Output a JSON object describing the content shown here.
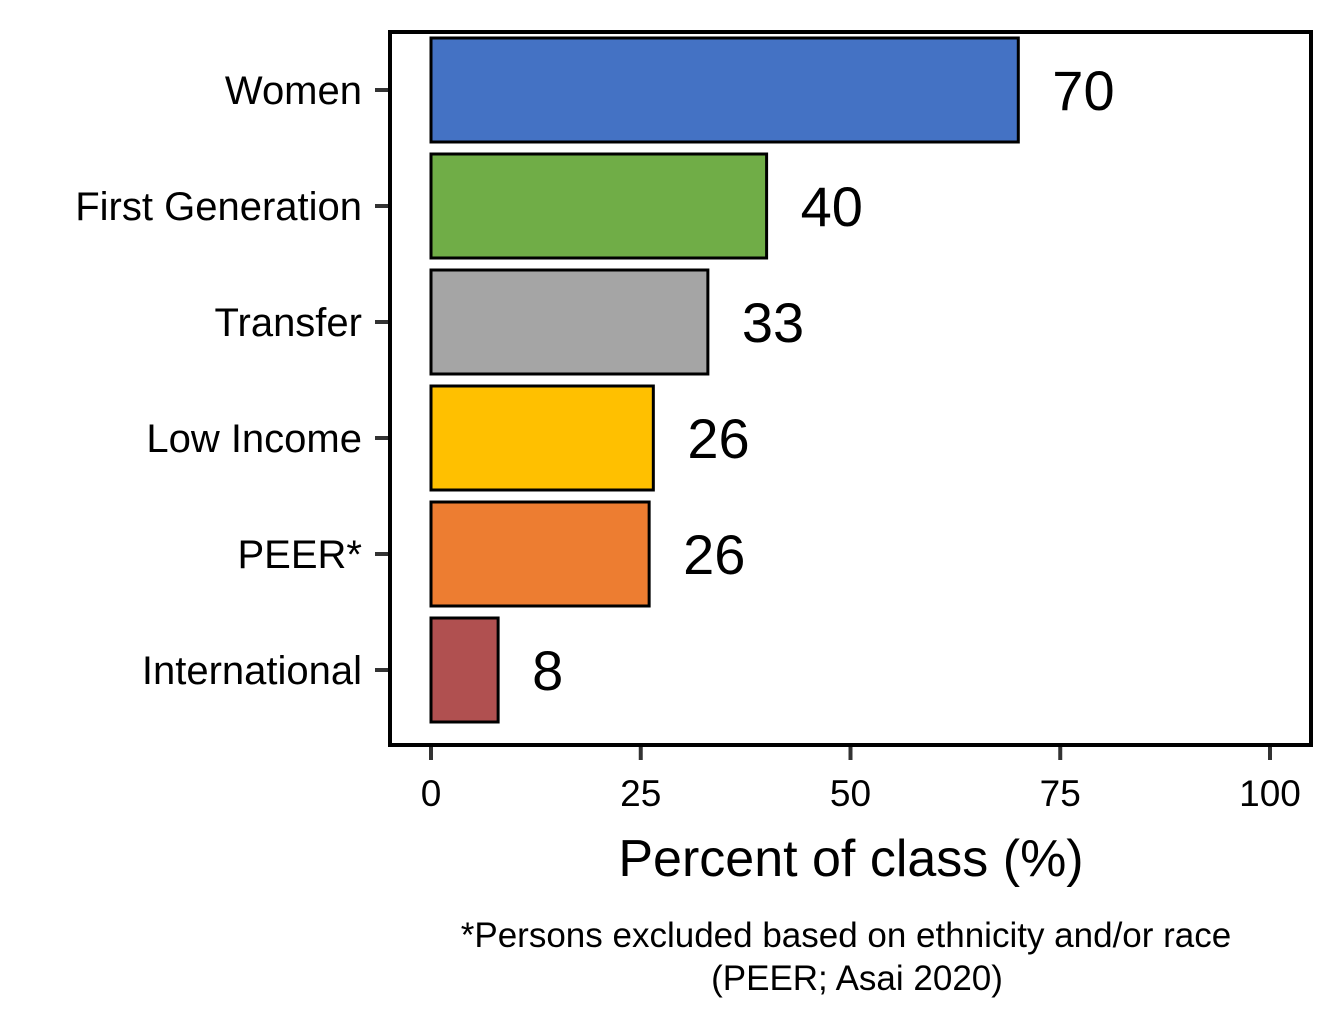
{
  "chart_data": {
    "type": "bar",
    "orientation": "horizontal",
    "categories": [
      "Women",
      "First Generation",
      "Transfer",
      "Low Income",
      "PEER*",
      "International"
    ],
    "values": [
      70,
      40,
      33,
      26.5,
      26,
      8
    ],
    "value_labels": [
      "70",
      "40",
      "33",
      "26",
      "26",
      "8"
    ],
    "colors": [
      "#4472C4",
      "#70AD47",
      "#A5A5A5",
      "#FFC000",
      "#ED7D31",
      "#B05050"
    ],
    "xlabel": "Percent of class (%)",
    "ylabel": "",
    "xlim": [
      0,
      100
    ],
    "xticks": [
      0,
      25,
      50,
      75,
      100
    ],
    "xtick_labels": [
      "0",
      "25",
      "50",
      "75",
      "100"
    ],
    "grid": false,
    "legend": "none"
  },
  "footnote": {
    "line1": "*Persons excluded based on ethnicity and/or race",
    "line2": "(PEER; Asai 2020)"
  }
}
